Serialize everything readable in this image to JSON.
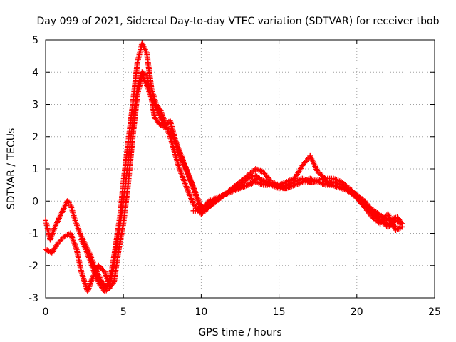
{
  "chart_data": {
    "type": "scatter",
    "title": "Day 099 of 2021, Sidereal Day-to-day VTEC variation (SDTVAR) for receiver tbob",
    "xlabel": "GPS time / hours",
    "ylabel": "SDTVAR / TECUs",
    "xlim": [
      0,
      25
    ],
    "ylim": [
      -3,
      5
    ],
    "x_ticks": [
      0,
      5,
      10,
      15,
      20,
      25
    ],
    "y_ticks": [
      -3,
      -2,
      -1,
      0,
      1,
      2,
      3,
      4,
      5
    ],
    "x_tick_labels": [
      "0",
      "5",
      "10",
      "15",
      "20",
      "25"
    ],
    "y_tick_labels": [
      "-3",
      "-2",
      "-1",
      "0",
      "1",
      "2",
      "3",
      "4",
      "5"
    ],
    "grid": true,
    "marker": "+",
    "color": "#ff0000",
    "series": [
      {
        "name": "track-1",
        "x": [
          0,
          0.3,
          0.6,
          1.0,
          1.4,
          1.6,
          1.9,
          2.2,
          2.5,
          2.9,
          3.2,
          3.6,
          3.9,
          4.2,
          4.5,
          4.8,
          5.0,
          5.3,
          5.6,
          5.9,
          6.2,
          6.5,
          6.8,
          7.1,
          7.4,
          7.7,
          8.0,
          8.3,
          8.6,
          9.0,
          9.5,
          10.0,
          10.5,
          11.0,
          11.5,
          12.0,
          12.5,
          13.0,
          13.5,
          14.0,
          14.5,
          15.0,
          15.5,
          16.0,
          16.5,
          17.0,
          17.5,
          18.0,
          18.5,
          19.0,
          19.5,
          20.0,
          20.5,
          21.0,
          21.5,
          22.0,
          22.5,
          22.9
        ],
        "y": [
          -0.6,
          -1.2,
          -0.8,
          -0.4,
          0.0,
          -0.1,
          -0.6,
          -1.0,
          -1.3,
          -1.7,
          -2.1,
          -2.5,
          -2.7,
          -2.3,
          -1.4,
          -0.4,
          0.6,
          1.8,
          3.0,
          4.3,
          4.9,
          4.6,
          3.5,
          3.0,
          2.8,
          2.4,
          2.0,
          1.5,
          1.0,
          0.5,
          -0.1,
          -0.4,
          -0.2,
          0.0,
          0.2,
          0.4,
          0.6,
          0.8,
          1.0,
          0.9,
          0.6,
          0.5,
          0.6,
          0.7,
          1.1,
          1.4,
          0.9,
          0.7,
          0.7,
          0.6,
          0.4,
          0.2,
          0.0,
          -0.3,
          -0.6,
          -0.8,
          -0.6,
          -0.7
        ]
      },
      {
        "name": "track-2",
        "x": [
          0,
          0.4,
          0.8,
          1.2,
          1.6,
          2.0,
          2.3,
          2.7,
          3.0,
          3.4,
          3.8,
          4.1,
          4.4,
          4.7,
          5.0,
          5.3,
          5.6,
          5.9,
          6.2,
          6.5,
          6.8,
          7.0,
          7.3,
          7.6,
          8.0,
          8.5,
          9.0,
          9.5,
          10.0,
          10.5,
          11.0,
          11.5,
          12.0,
          12.5,
          13.0,
          13.5,
          14.0,
          14.5,
          15.0,
          15.5,
          16.0,
          16.5,
          17.0,
          17.5,
          18.0,
          18.5,
          19.0,
          19.5,
          20.0,
          20.5,
          21.0,
          21.5,
          22.0,
          22.5,
          22.9
        ],
        "y": [
          -1.5,
          -1.6,
          -1.3,
          -1.1,
          -1.0,
          -1.5,
          -2.2,
          -2.8,
          -2.4,
          -2.0,
          -2.2,
          -2.6,
          -2.0,
          -1.0,
          0.0,
          1.2,
          2.5,
          3.5,
          4.0,
          3.9,
          3.2,
          2.6,
          2.4,
          2.3,
          2.5,
          1.6,
          1.0,
          0.4,
          -0.3,
          -0.2,
          0.1,
          0.2,
          0.4,
          0.5,
          0.7,
          0.8,
          0.6,
          0.5,
          0.4,
          0.5,
          0.6,
          0.7,
          0.6,
          0.6,
          0.5,
          0.6,
          0.5,
          0.3,
          0.1,
          -0.2,
          -0.5,
          -0.7,
          -0.4,
          -0.9,
          -0.8
        ]
      },
      {
        "name": "track-3",
        "x": [
          2.3,
          2.6,
          2.9,
          3.2,
          3.5,
          3.8,
          4.1,
          4.4,
          4.7,
          5.0,
          5.3,
          5.6,
          5.9,
          6.2,
          6.5,
          6.8,
          7.1,
          7.4,
          7.7,
          8.0,
          8.4,
          8.8,
          9.2,
          9.6,
          10.0,
          10.6,
          11.2,
          11.8,
          12.4,
          13.0,
          13.6,
          14.2,
          14.8,
          15.4,
          16.0,
          16.6,
          17.2,
          17.8,
          18.4,
          19.0,
          19.6,
          20.2,
          20.8,
          21.4,
          22.0,
          22.6,
          22.9
        ],
        "y": [
          -1.2,
          -1.5,
          -1.9,
          -2.3,
          -2.6,
          -2.8,
          -2.7,
          -2.5,
          -1.5,
          -0.7,
          0.5,
          2.0,
          3.3,
          3.9,
          3.6,
          3.2,
          2.9,
          2.6,
          2.3,
          2.2,
          1.8,
          1.3,
          0.8,
          0.3,
          -0.2,
          -0.1,
          0.1,
          0.3,
          0.4,
          0.5,
          0.7,
          0.6,
          0.5,
          0.4,
          0.5,
          0.6,
          0.6,
          0.7,
          0.5,
          0.4,
          0.3,
          0.0,
          -0.2,
          -0.4,
          -0.6,
          -0.5,
          -0.7
        ]
      },
      {
        "name": "track-4",
        "x": [
          9.5,
          10.0,
          10.5,
          11.0,
          11.5,
          12.0,
          12.5,
          13.0,
          13.5,
          14.0,
          14.5,
          15.0,
          15.5,
          16.0,
          16.5,
          17.0,
          17.5,
          18.0,
          18.5,
          19.0,
          19.5,
          20.0,
          20.5,
          21.0,
          21.5,
          22.0,
          22.5,
          22.9
        ],
        "y": [
          -0.3,
          -0.3,
          0.0,
          0.1,
          0.2,
          0.3,
          0.4,
          0.5,
          0.6,
          0.5,
          0.5,
          0.4,
          0.4,
          0.5,
          0.6,
          0.7,
          0.6,
          0.5,
          0.5,
          0.4,
          0.3,
          0.2,
          -0.1,
          -0.4,
          -0.6,
          -0.7,
          -0.8,
          -0.8
        ]
      }
    ]
  }
}
